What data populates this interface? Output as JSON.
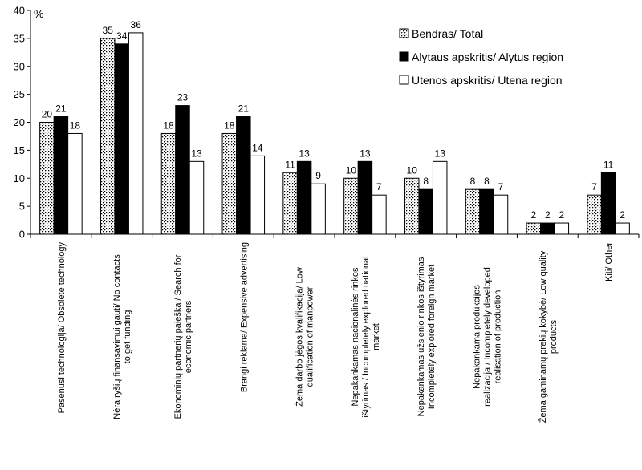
{
  "chart_data": {
    "type": "bar",
    "ylabel": "%",
    "ylim": [
      0,
      40
    ],
    "yticks": [
      0,
      5,
      10,
      15,
      20,
      25,
      30,
      35,
      40
    ],
    "grid": false,
    "legend_position": "top-right",
    "categories": [
      [
        "Pasenusi technologija/ Obsolete technology"
      ],
      [
        "Nėra ryšių finansavimui gauti/ No contacts",
        "to get funding"
      ],
      [
        "Ekonominių partnerių paieška / Search for",
        "economic partners"
      ],
      [
        "Brangi reklama/ Expensive advertising"
      ],
      [
        "Žema darbo jėgos kvalifikacija/ Low",
        "qualification of manpower"
      ],
      [
        "Nepakankamas nacionalinės rinkos",
        "ištyrimas / Incompletely explored national",
        "market"
      ],
      [
        "Nepakankamas užsienio rinkos ištyrimas",
        "Incompletely explored foreign market"
      ],
      [
        "Nepakankama produkcijos",
        "realizacija  / Incompletely developed",
        "realisation of production"
      ],
      [
        "Žema gaminamų prekių kokybė/ Low quality",
        "products"
      ],
      [
        "Kiti/ Other"
      ]
    ],
    "series": [
      {
        "name": "Bendras/ Total",
        "fill": "dotted",
        "values": [
          20,
          35,
          18,
          18,
          11,
          10,
          10,
          8,
          2,
          7
        ]
      },
      {
        "name": "Alytaus apskritis/ Alytus region",
        "fill": "#000000",
        "values": [
          21,
          34,
          23,
          21,
          13,
          13,
          8,
          8,
          2,
          11
        ]
      },
      {
        "name": "Utenos apskritis/ Utena region",
        "fill": "#ffffff",
        "values": [
          18,
          36,
          13,
          14,
          9,
          7,
          13,
          7,
          2,
          2
        ]
      }
    ]
  }
}
